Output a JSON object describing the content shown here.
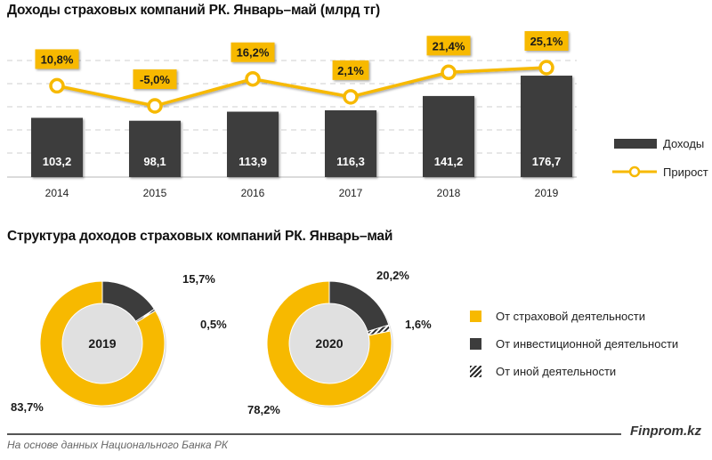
{
  "colors": {
    "yellow": "#f7b900",
    "dark": "#3c3c3c",
    "grid": "#cfcfcf"
  },
  "chart_data": [
    {
      "type": "bar+line",
      "title": "Доходы страховых компаний РК. Январь–май (млрд тг)",
      "categories": [
        "2014",
        "2015",
        "2016",
        "2017",
        "2018",
        "2019"
      ],
      "series": [
        {
          "name": "Доходы",
          "kind": "bar",
          "values": [
            103.2,
            98.1,
            113.9,
            116.3,
            141.2,
            176.7
          ],
          "labels": [
            "103,2",
            "98,1",
            "113,9",
            "116,3",
            "141,2",
            "176,7"
          ]
        },
        {
          "name": "Прирост",
          "kind": "line",
          "axis": "secondary",
          "values": [
            10.8,
            -5.0,
            16.2,
            2.1,
            21.4,
            25.1
          ],
          "labels": [
            "10,8%",
            "-5,0%",
            "16,2%",
            "2,1%",
            "21,4%",
            "25,1%"
          ]
        }
      ],
      "legend": [
        "Доходы",
        "Прирост"
      ],
      "legend_position": "right",
      "grid": true
    },
    {
      "type": "pie",
      "subtype": "donut",
      "title": "Структура доходов страховых компаний РК. Январь–май",
      "categories": [
        "От страховой деятельности",
        "От инвестиционной деятельности",
        "От иной деятельности"
      ],
      "series": [
        {
          "name": "2019",
          "values": [
            83.7,
            15.7,
            0.5
          ],
          "labels": [
            "83,7%",
            "15,7%",
            "0,5%"
          ]
        },
        {
          "name": "2020",
          "values": [
            78.2,
            20.2,
            1.6
          ],
          "labels": [
            "78,2%",
            "20,2%",
            "1,6%"
          ]
        }
      ],
      "legend_position": "right"
    }
  ],
  "footer": {
    "brand": "Finprom.kz",
    "source": "На основе данных Национального  Банка РК"
  }
}
